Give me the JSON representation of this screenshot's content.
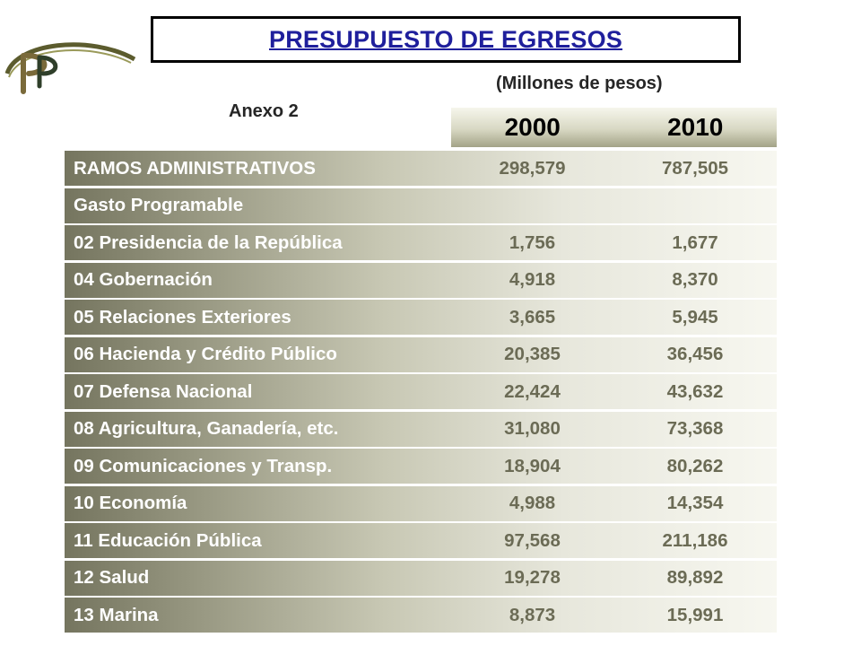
{
  "title": "PRESUPUESTO DE EGRESOS",
  "subtitle": "(Millones de pesos)",
  "annex": "Anexo 2",
  "years": [
    "2000",
    "2010"
  ],
  "rows": [
    {
      "label": "RAMOS ADMINISTRATIVOS",
      "v2000": "298,579",
      "v2010": "787,505"
    },
    {
      "label": "Gasto Programable",
      "v2000": "",
      "v2010": ""
    },
    {
      "label": "02 Presidencia de la República",
      "v2000": "1,756",
      "v2010": "1,677"
    },
    {
      "label": "04 Gobernación",
      "v2000": "4,918",
      "v2010": "8,370"
    },
    {
      "label": "05 Relaciones Exteriores",
      "v2000": "3,665",
      "v2010": "5,945"
    },
    {
      "label": "06 Hacienda y Crédito Público",
      "v2000": "20,385",
      "v2010": "36,456"
    },
    {
      "label": "07 Defensa Nacional",
      "v2000": "22,424",
      "v2010": "43,632"
    },
    {
      "label": "08 Agricultura, Ganadería, etc.",
      "v2000": "31,080",
      "v2010": "73,368"
    },
    {
      "label": "09 Comunicaciones y Transp.",
      "v2000": "18,904",
      "v2010": "80,262"
    },
    {
      "label": "10 Economía",
      "v2000": "4,988",
      "v2010": "14,354"
    },
    {
      "label": "11 Educación Pública",
      "v2000": "97,568",
      "v2010": "211,186"
    },
    {
      "label": "12 Salud",
      "v2000": "19,278",
      "v2010": "89,892"
    },
    {
      "label": "13 Marina",
      "v2000": "8,873",
      "v2010": "15,991"
    }
  ],
  "logo": {
    "icon": "pp-monogram-logo",
    "colors": {
      "arc": "#5c5c2e",
      "letter_p": "#7a6a3a",
      "letter_small": "#2f3f2a"
    }
  },
  "colors": {
    "title_text": "#1f1f9c",
    "row_text": "#ffffff",
    "value_text": "#6b6b55"
  }
}
